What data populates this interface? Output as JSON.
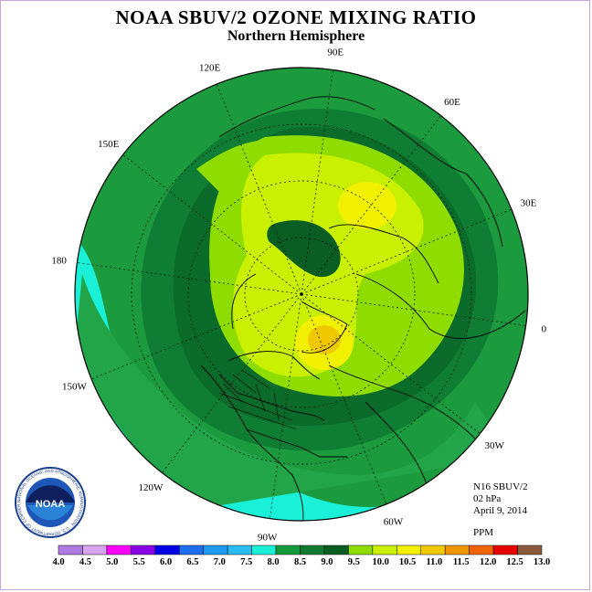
{
  "title": "NOAA SBUV/2 OZONE MIXING RATIO",
  "subtitle": "Northern Hemisphere",
  "longitude_labels": [
    "90E",
    "60E",
    "30E",
    "0",
    "30W",
    "60W",
    "90W",
    "120W",
    "150W",
    "180",
    "150E",
    "120E"
  ],
  "info": {
    "satellite": "N16 SBUV/2",
    "level": "02 hPa",
    "date": "April 9, 2014",
    "units": "PPM"
  },
  "logo_text": {
    "name": "NOAA",
    "ring_text": "NATIONAL OCEANIC AND ATMOSPHERIC ADMINISTRATION · U.S. DEPARTMENT OF COMMERCE"
  },
  "colorbar": {
    "ticks": [
      "4.0",
      "4.5",
      "5.0",
      "5.5",
      "6.0",
      "6.5",
      "7.0",
      "7.5",
      "8.0",
      "8.5",
      "9.0",
      "9.5",
      "10.0",
      "10.5",
      "11.0",
      "11.5",
      "12.0",
      "12.5",
      "13.0"
    ],
    "colors": [
      "#b07be0",
      "#d8a6f0",
      "#ff00ff",
      "#8a00e6",
      "#0000e6",
      "#1e6ef0",
      "#1e9bf0",
      "#2dbcf2",
      "#19f0d7",
      "#129a3c",
      "#107a33",
      "#0a5e24",
      "#8fdc00",
      "#c8f000",
      "#f0f000",
      "#f0c800",
      "#f09600",
      "#f06400",
      "#e60000",
      "#8b5a3c"
    ]
  }
}
